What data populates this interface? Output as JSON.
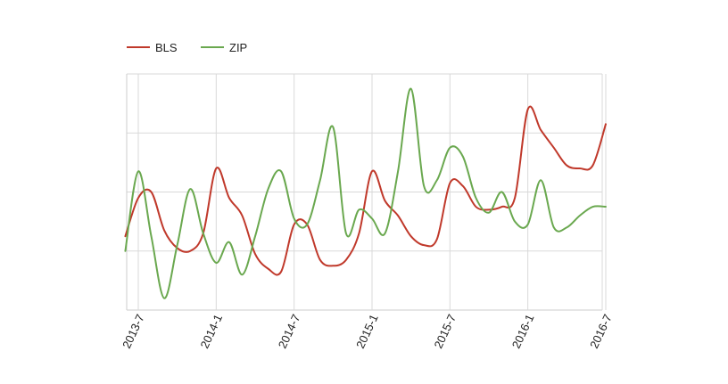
{
  "chart_data": {
    "type": "line",
    "title": "",
    "xlabel": "",
    "ylabel": "",
    "x_ticks": [
      "2013-7",
      "2014-1",
      "2014-7",
      "2015-1",
      "2015-7",
      "2016-1",
      "2016-7"
    ],
    "x_range": [
      "2013-6",
      "2016-7"
    ],
    "y_range": [
      0,
      4
    ],
    "y_tick_labels_shown": false,
    "grid": true,
    "legend": "top-left",
    "series": [
      {
        "name": "BLS",
        "color": "#c0392b",
        "x": [
          "2013-6",
          "2013-7",
          "2013-8",
          "2013-9",
          "2013-10",
          "2013-11",
          "2013-12",
          "2014-1",
          "2014-2",
          "2014-3",
          "2014-4",
          "2014-5",
          "2014-6",
          "2014-7",
          "2014-8",
          "2014-9",
          "2014-10",
          "2014-11",
          "2014-12",
          "2015-1",
          "2015-2",
          "2015-3",
          "2015-4",
          "2015-5",
          "2015-6",
          "2015-7",
          "2015-8",
          "2015-9",
          "2015-10",
          "2015-11",
          "2015-12",
          "2016-1",
          "2016-2",
          "2016-3",
          "2016-4",
          "2016-5",
          "2016-6",
          "2016-7"
        ],
        "values": [
          1.25,
          1.9,
          2.0,
          1.35,
          1.05,
          1.0,
          1.3,
          2.4,
          1.9,
          1.6,
          0.95,
          0.7,
          0.65,
          1.45,
          1.45,
          0.85,
          0.75,
          0.85,
          1.3,
          2.35,
          1.85,
          1.6,
          1.25,
          1.1,
          1.2,
          2.15,
          2.1,
          1.75,
          1.7,
          1.75,
          1.9,
          3.4,
          3.05,
          2.75,
          2.45,
          2.4,
          2.45,
          3.15
        ]
      },
      {
        "name": "ZIP",
        "color": "#6aa84f",
        "x": [
          "2013-6",
          "2013-7",
          "2013-8",
          "2013-9",
          "2013-10",
          "2013-11",
          "2013-12",
          "2014-1",
          "2014-2",
          "2014-3",
          "2014-4",
          "2014-5",
          "2014-6",
          "2014-7",
          "2014-8",
          "2014-9",
          "2014-10",
          "2014-11",
          "2014-12",
          "2015-1",
          "2015-2",
          "2015-3",
          "2015-4",
          "2015-5",
          "2015-6",
          "2015-7",
          "2015-8",
          "2015-9",
          "2015-10",
          "2015-11",
          "2015-12",
          "2016-1",
          "2016-2",
          "2016-3",
          "2016-4",
          "2016-5",
          "2016-6",
          "2016-7"
        ],
        "values": [
          1.0,
          2.35,
          1.25,
          0.2,
          1.1,
          2.05,
          1.3,
          0.8,
          1.15,
          0.6,
          1.25,
          2.05,
          2.35,
          1.55,
          1.45,
          2.2,
          3.1,
          1.3,
          1.7,
          1.55,
          1.3,
          2.35,
          3.75,
          2.1,
          2.2,
          2.75,
          2.6,
          1.9,
          1.65,
          2.0,
          1.5,
          1.45,
          2.2,
          1.4,
          1.4,
          1.6,
          1.75,
          1.75
        ]
      }
    ]
  }
}
